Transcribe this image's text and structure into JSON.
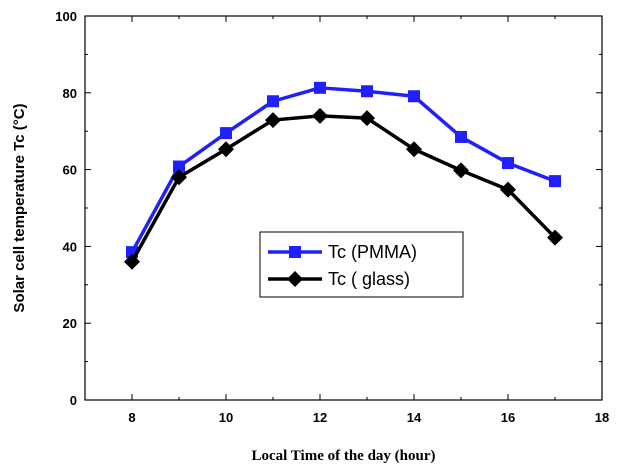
{
  "chart_data": {
    "type": "line",
    "title": "",
    "xlabel": "Local Time of the day (hour)",
    "ylabel": "Solar cell temperature Tc (°C)",
    "xlim": [
      7,
      18
    ],
    "ylim": [
      0,
      100
    ],
    "x_ticks": [
      8,
      10,
      12,
      14,
      16,
      18
    ],
    "y_ticks": [
      0,
      20,
      40,
      60,
      80,
      100
    ],
    "grid": false,
    "legend_position": "center",
    "x": [
      8,
      9,
      10,
      11,
      12,
      13,
      14,
      15,
      16,
      17
    ],
    "series": [
      {
        "name": "Tc (PMMA)",
        "color": "#1f1fff",
        "marker": "square",
        "values": [
          38.5,
          60.8,
          69.5,
          77.8,
          81.3,
          80.4,
          79.1,
          68.5,
          61.7,
          57.0
        ]
      },
      {
        "name": "Tc ( glass)",
        "color": "#000000",
        "marker": "diamond",
        "values": [
          36.0,
          58.0,
          65.3,
          72.9,
          74.0,
          73.4,
          65.3,
          59.8,
          54.8,
          42.3
        ]
      }
    ]
  }
}
